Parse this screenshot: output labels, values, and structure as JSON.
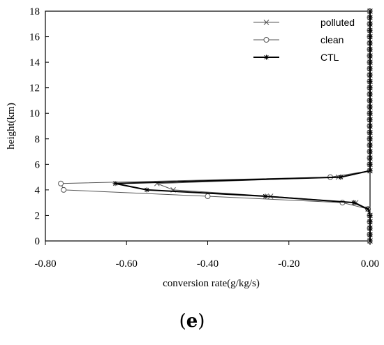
{
  "chart_data": {
    "type": "line",
    "xlabel": "conversion rate(g/kg/s)",
    "ylabel": "height(km)",
    "xlim": [
      -0.8,
      0.0
    ],
    "ylim": [
      0,
      18
    ],
    "xticks": [
      "-0.80",
      "-0.60",
      "-0.40",
      "-0.20",
      "0.00"
    ],
    "yticks": [
      "0",
      "2",
      "4",
      "6",
      "8",
      "10",
      "12",
      "14",
      "16",
      "18"
    ],
    "legend_position": "top-right",
    "grid": false,
    "series": [
      {
        "name": "polluted",
        "marker": "x",
        "color": "#555555",
        "x": [
          0.0,
          0.0,
          0.0,
          -0.005,
          -0.035,
          -0.245,
          -0.485,
          -0.525,
          -0.078,
          0.0,
          0.0,
          0.0,
          0.0,
          0.0,
          0.0,
          0.0,
          0.0,
          0.0,
          0.0,
          0.0,
          0.0,
          0.0,
          0.0,
          0.0,
          0.0,
          0.0,
          0.0,
          0.0,
          0.0,
          0.0,
          0.0,
          0.0,
          0.0,
          0.0,
          0.0,
          0.0,
          0.0
        ],
        "y": [
          0.0,
          0.5,
          1.0,
          2.5,
          3.0,
          3.5,
          4.0,
          4.5,
          5.0,
          5.5,
          6.0,
          6.5,
          7.0,
          7.5,
          8.0,
          8.5,
          9.0,
          9.5,
          10.0,
          10.5,
          11.0,
          11.5,
          12.0,
          12.5,
          13.0,
          13.5,
          14.0,
          14.5,
          15.0,
          15.5,
          16.0,
          16.5,
          17.0,
          17.5,
          18.0,
          1.5,
          2.0
        ]
      },
      {
        "name": "clean",
        "marker": "o",
        "color": "#555555",
        "x": [
          0.0,
          0.0,
          0.0,
          -0.005,
          -0.068,
          -0.4,
          -0.755,
          -0.762,
          -0.098,
          0.0,
          0.0,
          0.0,
          0.0,
          0.0,
          0.0,
          0.0,
          0.0,
          0.0,
          0.0,
          0.0,
          0.0,
          0.0,
          0.0,
          0.0,
          0.0,
          0.0,
          0.0,
          0.0,
          0.0,
          0.0,
          0.0,
          0.0,
          0.0,
          0.0,
          0.0,
          0.0,
          0.0
        ],
        "y": [
          0.0,
          0.5,
          1.0,
          2.5,
          3.0,
          3.5,
          4.0,
          4.5,
          5.0,
          5.5,
          6.0,
          6.5,
          7.0,
          7.5,
          8.0,
          8.5,
          9.0,
          9.5,
          10.0,
          10.5,
          11.0,
          11.5,
          12.0,
          12.5,
          13.0,
          13.5,
          14.0,
          14.5,
          15.0,
          15.5,
          16.0,
          16.5,
          17.0,
          17.5,
          18.0,
          1.5,
          2.0
        ]
      },
      {
        "name": "CTL",
        "marker": "*",
        "color": "#000000",
        "x": [
          0.0,
          0.0,
          0.0,
          -0.005,
          -0.04,
          -0.258,
          -0.55,
          -0.628,
          -0.072,
          0.0,
          0.0,
          0.0,
          0.0,
          0.0,
          0.0,
          0.0,
          0.0,
          0.0,
          0.0,
          0.0,
          0.0,
          0.0,
          0.0,
          0.0,
          0.0,
          0.0,
          0.0,
          0.0,
          0.0,
          0.0,
          0.0,
          0.0,
          0.0,
          0.0,
          0.0,
          0.0,
          0.0
        ],
        "y": [
          0.0,
          0.5,
          1.0,
          2.5,
          3.0,
          3.5,
          4.0,
          4.5,
          5.0,
          5.5,
          6.0,
          6.5,
          7.0,
          7.5,
          8.0,
          8.5,
          9.0,
          9.5,
          10.0,
          10.5,
          11.0,
          11.5,
          12.0,
          12.5,
          13.0,
          13.5,
          14.0,
          14.5,
          15.0,
          15.5,
          16.0,
          16.5,
          17.0,
          17.5,
          18.0,
          1.5,
          2.0
        ]
      }
    ]
  },
  "panel_label": {
    "open": "(",
    "letter": "e",
    "close": ")"
  }
}
